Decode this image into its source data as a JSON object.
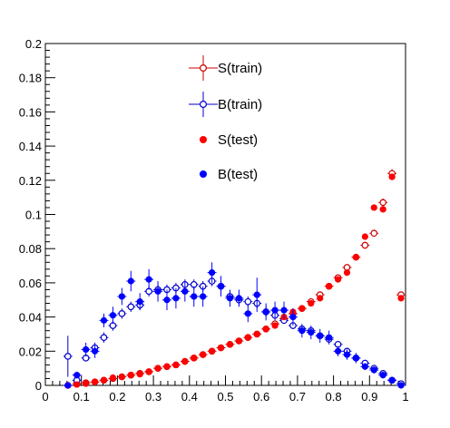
{
  "chart_data": {
    "type": "scatter",
    "title": "",
    "xlabel": "",
    "ylabel": "",
    "xlim": [
      0,
      1
    ],
    "ylim": [
      0,
      0.2
    ],
    "x_ticks": [
      "0",
      "0.1",
      "0.2",
      "0.3",
      "0.4",
      "0.5",
      "0.6",
      "0.7",
      "0.8",
      "0.9",
      "1"
    ],
    "y_ticks": [
      "0",
      "0.02",
      "0.04",
      "0.06",
      "0.08",
      "0.1",
      "0.12",
      "0.14",
      "0.16",
      "0.18",
      "0.2"
    ],
    "legend_position": "top-center",
    "x_bin_width": 0.025,
    "series": [
      {
        "name": "S(train)",
        "color": "#cc0000",
        "marker": "open-circle",
        "error_bars": true,
        "x": [
          0.0625,
          0.0875,
          0.1125,
          0.1375,
          0.1625,
          0.1875,
          0.2125,
          0.2375,
          0.2625,
          0.2875,
          0.3125,
          0.3375,
          0.3625,
          0.3875,
          0.4125,
          0.4375,
          0.4625,
          0.4875,
          0.5125,
          0.5375,
          0.5625,
          0.5875,
          0.6125,
          0.6375,
          0.6625,
          0.6875,
          0.7125,
          0.7375,
          0.7625,
          0.7875,
          0.8125,
          0.8375,
          0.8625,
          0.8875,
          0.9125,
          0.9375,
          0.9625,
          0.9875
        ],
        "y": [
          0.0,
          0.001,
          0.0015,
          0.002,
          0.003,
          0.004,
          0.005,
          0.006,
          0.007,
          0.008,
          0.01,
          0.011,
          0.012,
          0.014,
          0.016,
          0.018,
          0.02,
          0.022,
          0.024,
          0.026,
          0.028,
          0.03,
          0.033,
          0.036,
          0.039,
          0.042,
          0.045,
          0.049,
          0.053,
          0.058,
          0.063,
          0.069,
          0.075,
          0.082,
          0.089,
          0.107,
          0.124,
          0.053
        ],
        "yerr": [
          0.0003,
          0.0004,
          0.0005,
          0.0006,
          0.0007,
          0.0008,
          0.0008,
          0.0009,
          0.001,
          0.001,
          0.001,
          0.001,
          0.001,
          0.0011,
          0.0011,
          0.0012,
          0.0012,
          0.0012,
          0.0013,
          0.0013,
          0.0013,
          0.0014,
          0.0014,
          0.0015,
          0.0015,
          0.0016,
          0.0016,
          0.0017,
          0.0017,
          0.0018,
          0.0018,
          0.0019,
          0.002,
          0.002,
          0.0021,
          0.0023,
          0.0025,
          0.0016
        ]
      },
      {
        "name": "B(train)",
        "color": "#0000cc",
        "marker": "open-circle",
        "error_bars": true,
        "x": [
          0.0625,
          0.0875,
          0.1125,
          0.1375,
          0.1625,
          0.1875,
          0.2125,
          0.2375,
          0.2625,
          0.2875,
          0.3125,
          0.3375,
          0.3625,
          0.3875,
          0.4125,
          0.4375,
          0.4625,
          0.4875,
          0.5125,
          0.5375,
          0.5625,
          0.5875,
          0.6125,
          0.6375,
          0.6625,
          0.6875,
          0.7125,
          0.7375,
          0.7625,
          0.7875,
          0.8125,
          0.8375,
          0.8625,
          0.8875,
          0.9125,
          0.9375,
          0.9625,
          0.9875
        ],
        "y": [
          0.017,
          0.003,
          0.016,
          0.022,
          0.028,
          0.035,
          0.042,
          0.046,
          0.047,
          0.055,
          0.056,
          0.056,
          0.057,
          0.059,
          0.059,
          0.058,
          0.061,
          0.058,
          0.052,
          0.05,
          0.049,
          0.048,
          0.043,
          0.041,
          0.038,
          0.035,
          0.033,
          0.032,
          0.029,
          0.027,
          0.024,
          0.02,
          0.016,
          0.013,
          0.01,
          0.007,
          0.003,
          0.001
        ],
        "yerr": [
          0.012,
          0.004,
          0.002,
          0.003,
          0.003,
          0.003,
          0.003,
          0.003,
          0.003,
          0.003,
          0.003,
          0.003,
          0.003,
          0.003,
          0.003,
          0.003,
          0.003,
          0.003,
          0.003,
          0.003,
          0.003,
          0.003,
          0.003,
          0.003,
          0.002,
          0.002,
          0.002,
          0.002,
          0.002,
          0.002,
          0.002,
          0.002,
          0.002,
          0.002,
          0.002,
          0.0015,
          0.001,
          0.0008
        ]
      },
      {
        "name": "S(test)",
        "color": "#ff0000",
        "marker": "filled-circle",
        "error_bars": false,
        "x": [
          0.0625,
          0.0875,
          0.1125,
          0.1375,
          0.1625,
          0.1875,
          0.2125,
          0.2375,
          0.2625,
          0.2875,
          0.3125,
          0.3375,
          0.3625,
          0.3875,
          0.4125,
          0.4375,
          0.4625,
          0.4875,
          0.5125,
          0.5375,
          0.5625,
          0.5875,
          0.6125,
          0.6375,
          0.6625,
          0.6875,
          0.7125,
          0.7375,
          0.7625,
          0.7875,
          0.8125,
          0.8375,
          0.8625,
          0.8875,
          0.9125,
          0.9375,
          0.9625,
          0.9875
        ],
        "y": [
          0.0,
          0.0005,
          0.001,
          0.002,
          0.003,
          0.0045,
          0.005,
          0.006,
          0.0065,
          0.008,
          0.01,
          0.011,
          0.012,
          0.014,
          0.016,
          0.018,
          0.02,
          0.022,
          0.024,
          0.026,
          0.028,
          0.03,
          0.033,
          0.035,
          0.04,
          0.043,
          0.045,
          0.048,
          0.051,
          0.058,
          0.062,
          0.066,
          0.075,
          0.087,
          0.104,
          0.103,
          0.122,
          0.051
        ]
      },
      {
        "name": "B(test)",
        "color": "#0000ff",
        "marker": "filled-circle",
        "error_bars": true,
        "x": [
          0.0625,
          0.0875,
          0.1125,
          0.1375,
          0.1625,
          0.1875,
          0.2125,
          0.2375,
          0.2625,
          0.2875,
          0.3125,
          0.3375,
          0.3625,
          0.3875,
          0.4125,
          0.4375,
          0.4625,
          0.4875,
          0.5125,
          0.5375,
          0.5625,
          0.5875,
          0.6125,
          0.6375,
          0.6625,
          0.6875,
          0.7125,
          0.7375,
          0.7625,
          0.7875,
          0.8125,
          0.8375,
          0.8625,
          0.8875,
          0.9125,
          0.9375,
          0.9625,
          0.9875
        ],
        "y": [
          0.0,
          0.006,
          0.021,
          0.02,
          0.038,
          0.041,
          0.052,
          0.061,
          0.049,
          0.062,
          0.055,
          0.05,
          0.051,
          0.055,
          0.052,
          0.052,
          0.066,
          0.058,
          0.051,
          0.051,
          0.042,
          0.053,
          0.043,
          0.044,
          0.044,
          0.04,
          0.032,
          0.031,
          0.029,
          0.028,
          0.02,
          0.018,
          0.016,
          0.011,
          0.009,
          0.006,
          0.003,
          0.0
        ],
        "yerr": [
          0.0005,
          0.002,
          0.004,
          0.004,
          0.004,
          0.005,
          0.005,
          0.006,
          0.005,
          0.006,
          0.006,
          0.006,
          0.006,
          0.006,
          0.006,
          0.006,
          0.006,
          0.006,
          0.005,
          0.005,
          0.005,
          0.01,
          0.005,
          0.005,
          0.005,
          0.005,
          0.004,
          0.004,
          0.004,
          0.004,
          0.003,
          0.003,
          0.003,
          0.002,
          0.002,
          0.002,
          0.001,
          0.0005
        ]
      }
    ]
  }
}
